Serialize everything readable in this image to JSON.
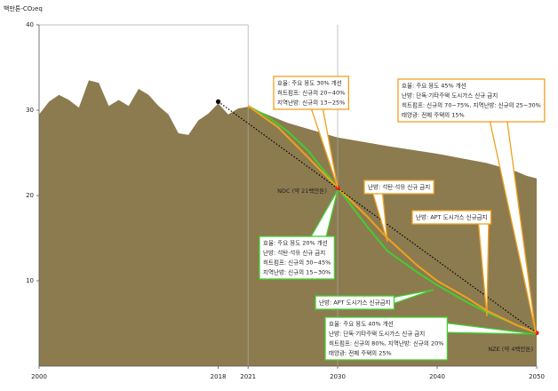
{
  "chart_data": {
    "type": "line",
    "y_label": "백만톤-CO₂eq",
    "xlim": [
      2000,
      2050
    ],
    "ylim": [
      0,
      40
    ],
    "xticks": [
      2000,
      2018,
      2021,
      2030,
      2040,
      2050
    ],
    "yticks": [
      10,
      20,
      30,
      40
    ],
    "series": [
      {
        "color": "#8c7b4f",
        "fill": true,
        "x": [
          2000,
          2001,
          2002,
          2003,
          2004,
          2005,
          2006,
          2007,
          2008,
          2009,
          2010,
          2011,
          2012,
          2013,
          2014,
          2015,
          2016,
          2017,
          2018,
          2019,
          2020,
          2021,
          2025,
          2030,
          2035,
          2040,
          2045,
          2048,
          2049,
          2050
        ],
        "values": [
          29.5,
          31.0,
          31.8,
          31.2,
          30.3,
          33.5,
          33.2,
          30.5,
          31.2,
          30.5,
          32.5,
          31.8,
          30.5,
          29.5,
          27.3,
          27.1,
          28.8,
          29.6,
          30.8,
          29.5,
          30.2,
          30.4,
          28.5,
          26.8,
          25.8,
          24.9,
          23.8,
          22.8,
          22.3,
          22.0
        ]
      },
      {
        "color": "#44cc33",
        "x": [
          2021,
          2023,
          2025,
          2027,
          2030,
          2033,
          2035,
          2038,
          2040,
          2043,
          2045,
          2048,
          2050
        ],
        "values": [
          30.5,
          29.2,
          27.5,
          25.3,
          20.9,
          16.3,
          13.5,
          11.0,
          9.5,
          7.5,
          6.3,
          4.8,
          3.9
        ]
      },
      {
        "color": "#f0a020",
        "x": [
          2021,
          2024,
          2027,
          2030,
          2033,
          2035,
          2038,
          2040,
          2043,
          2045,
          2048,
          2050
        ],
        "values": [
          30.5,
          28.0,
          24.5,
          20.9,
          17.5,
          15.0,
          11.8,
          10.0,
          8.0,
          6.5,
          4.8,
          3.9
        ]
      },
      {
        "color": "#000000",
        "dash": true,
        "x": [
          2018,
          2050
        ],
        "values": [
          31.0,
          3.9
        ]
      }
    ],
    "markers": {
      "x": [
        2018,
        2030,
        2050
      ],
      "values": [
        31.0,
        20.9,
        3.9
      ],
      "colors": [
        "#000000",
        "#e02020",
        "#e02020"
      ]
    },
    "labels": [
      "NDC (약 21백만톤)",
      "NZE (약 4백만톤)"
    ],
    "annotations": [
      {
        "color": "#f0a020",
        "lines": [
          "효율: 주요 용도 30% 개선",
          "히트펌프: 신규의 20~40%",
          "지역난방: 신규의 13~25%"
        ]
      },
      {
        "color": "#f0a020",
        "lines": [
          "효율: 주요 용도 45% 개선",
          "난방: 단독·기타주택 도시가스 신규 금지",
          "히트펌프: 신규의 70~75%, 지역난방: 신규의 25~30%",
          "태양광: 전체 주택의 15%"
        ]
      },
      {
        "color": "#f0a020",
        "lines": [
          "난방: 석탄·석유 신규 금지"
        ]
      },
      {
        "color": "#f0a020",
        "lines": [
          "난방: APT 도시가스 신규금지"
        ]
      },
      {
        "color": "#44cc33",
        "lines": [
          "효율: 주요 용도 20% 개선",
          "난방: 석탄·석유 신규 금지",
          "히트펌프: 신규의 30~45%",
          "지역난방: 신규의 15~30%"
        ]
      },
      {
        "color": "#44cc33",
        "lines": [
          "난방: APT 도시가스 신규금지"
        ]
      },
      {
        "color": "#44cc33",
        "lines": [
          "효율: 주요 용도 40% 개선",
          "난방: 단독·기타주택 도시가스 신규 금지",
          "히트펌프: 신규의 80%, 지역난방: 신규의 20%",
          "태양광: 전체 주택의 25%"
        ]
      }
    ]
  }
}
